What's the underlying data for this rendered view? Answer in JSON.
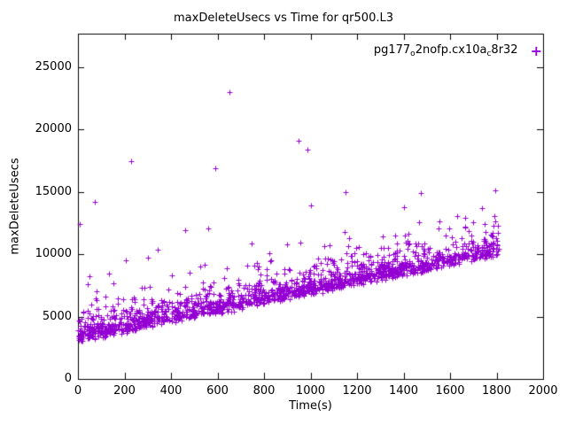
{
  "chart_data": {
    "type": "scatter",
    "title": "maxDeleteUsecs vs Time for qr500.L3",
    "xlabel": "Time(s)",
    "ylabel": "maxDeleteUsecs",
    "xlim": [
      0,
      2000
    ],
    "ylim": [
      0,
      27700
    ],
    "xticks": [
      0,
      200,
      400,
      600,
      800,
      1000,
      1200,
      1400,
      1600,
      1800,
      2000
    ],
    "yticks": [
      0,
      5000,
      10000,
      15000,
      20000,
      25000
    ],
    "grid": false,
    "marker": "plus",
    "marker_glyph": "+",
    "color": "#9400d3",
    "legend": {
      "position": "top-right",
      "label_plain": "pg177_o2nofp.cx10a_c8r32",
      "parts": [
        {
          "text": "pg177"
        },
        {
          "text": "o",
          "sub": true
        },
        {
          "text": "2nofp.cx10a"
        },
        {
          "text": "c",
          "sub": true
        },
        {
          "text": "8r32"
        }
      ]
    },
    "series_name": "pg177_o2nofp.cx10a_c8r32",
    "trend": {
      "x_start": 0,
      "x_end": 1810,
      "y_start": 3050,
      "y_end": 9950
    },
    "n_points": 1700,
    "seed": 7,
    "noise": {
      "uniform_band": 500,
      "exp_scale": 650,
      "base_offset": 60,
      "spike_prob": 0.035,
      "spike_min": 600,
      "spike_range": 2600
    },
    "outliers": [
      [
        8,
        12400
      ],
      [
        72,
        14200
      ],
      [
        40,
        7600
      ],
      [
        230,
        17500
      ],
      [
        205,
        9500
      ],
      [
        300,
        9700
      ],
      [
        460,
        11900
      ],
      [
        560,
        12100
      ],
      [
        590,
        16900
      ],
      [
        650,
        23000
      ],
      [
        950,
        19100
      ],
      [
        985,
        18400
      ],
      [
        1000,
        13900
      ],
      [
        1150,
        15000
      ],
      [
        1400,
        13800
      ],
      [
        1475,
        14900
      ],
      [
        1630,
        13100
      ],
      [
        1700,
        12600
      ],
      [
        1795,
        15100
      ],
      [
        1805,
        12300
      ]
    ]
  }
}
